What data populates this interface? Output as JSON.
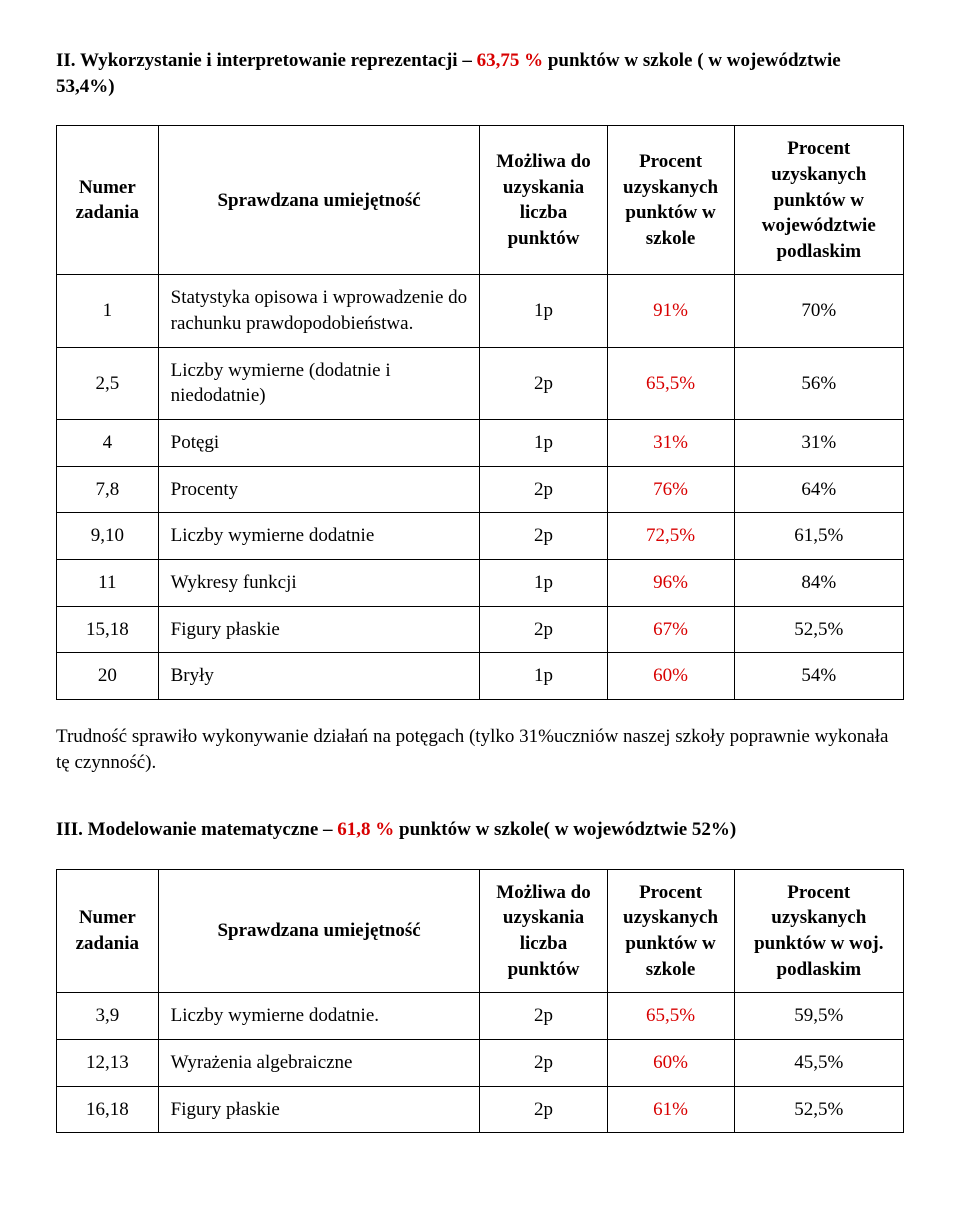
{
  "section2": {
    "title_prefix": "II. Wykorzystanie i interpretowanie reprezentacji – ",
    "title_pct": "63,75 %",
    "title_suffix": " punktów w szkole ( w województwie 53,4%)",
    "headers": {
      "num": "Numer zadania",
      "skill": "Sprawdzana umiejętność",
      "possible": "Możliwa do uzyskania liczba punktów",
      "school": "Procent uzyskanych punktów w szkole",
      "woj": "Procent uzyskanych punktów w województwie podlaskim"
    },
    "rows": [
      {
        "num": "1",
        "skill": "Statystyka opisowa i wprowadzenie do rachunku prawdopodobieństwa.",
        "pts": "1p",
        "school": "91%",
        "woj": "70%"
      },
      {
        "num": "2,5",
        "skill": "Liczby wymierne (dodatnie i niedodatnie)",
        "pts": "2p",
        "school": "65,5%",
        "woj": "56%"
      },
      {
        "num": "4",
        "skill": "Potęgi",
        "pts": "1p",
        "school": "31%",
        "woj": "31%"
      },
      {
        "num": "7,8",
        "skill": "Procenty",
        "pts": "2p",
        "school": "76%",
        "woj": "64%"
      },
      {
        "num": "9,10",
        "skill": "Liczby wymierne dodatnie",
        "pts": "2p",
        "school": "72,5%",
        "woj": "61,5%"
      },
      {
        "num": "11",
        "skill": "Wykresy funkcji",
        "pts": "1p",
        "school": "96%",
        "woj": "84%"
      },
      {
        "num": "15,18",
        "skill": "Figury płaskie",
        "pts": "2p",
        "school": "67%",
        "woj": "52,5%"
      },
      {
        "num": "20",
        "skill": "Bryły",
        "pts": "1p",
        "school": "60%",
        "woj": "54%"
      }
    ],
    "footer": "Trudność sprawiło wykonywanie działań  na potęgach (tylko 31%uczniów naszej szkoły poprawnie wykonała tę czynność)."
  },
  "section3": {
    "title_prefix": "III. Modelowanie matematyczne – ",
    "title_pct": "61,8 %",
    "title_suffix": " punktów w szkole( w województwie 52%)",
    "headers": {
      "num": "Numer zadania",
      "skill": "Sprawdzana umiejętność",
      "possible": "Możliwa do uzyskania liczba punktów",
      "school": "Procent uzyskanych punktów w szkole",
      "woj": "Procent uzyskanych punktów w woj. podlaskim"
    },
    "rows": [
      {
        "num": "3,9",
        "skill": "Liczby wymierne dodatnie.",
        "pts": "2p",
        "school": "65,5%",
        "woj": "59,5%"
      },
      {
        "num": "12,13",
        "skill": "Wyrażenia algebraiczne",
        "pts": "2p",
        "school": "60%",
        "woj": "45,5%"
      },
      {
        "num": "16,18",
        "skill": "Figury płaskie",
        "pts": "2p",
        "school": "61%",
        "woj": "52,5%"
      }
    ]
  },
  "style": {
    "highlight_color": "#d80000",
    "body_fontsize": 19
  }
}
